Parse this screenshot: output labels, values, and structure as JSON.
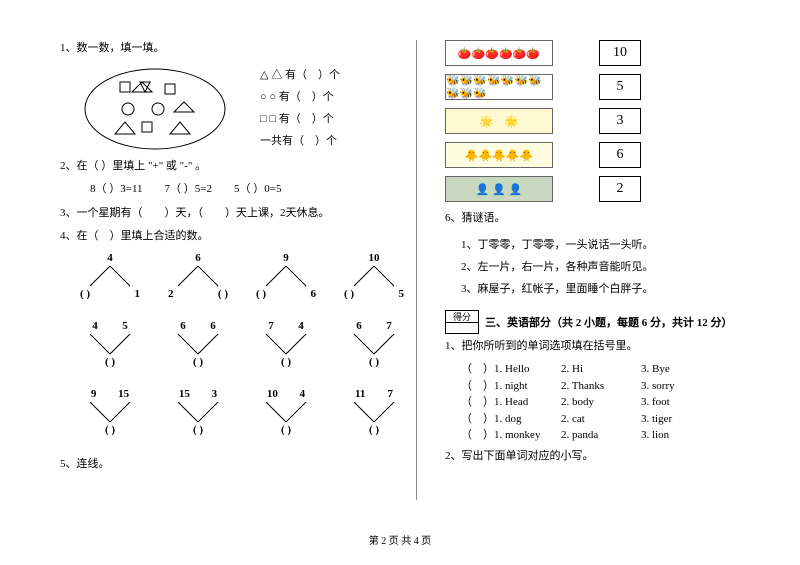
{
  "left": {
    "q1": {
      "title": "1、数一数，填一填。",
      "tri_label": "△ 有（　）个",
      "cir_label": "○ 有（　）个",
      "sq_label": "□ 有（　）个",
      "sum_label": "一共有（　）个"
    },
    "q2": {
      "title": "2、在（ ）里填上 \"+\" 或 \"-\" 。",
      "eqs": "8（ ）3=11　　7（ ）5=2　　5（ ）0=5"
    },
    "q3": "3、一个星期有（　　）天，（　　）天上课，2天休息。",
    "q4": {
      "title": "4、在（　）里填上合适的数。",
      "rows": [
        [
          {
            "top": [
              "4"
            ],
            "bot": [
              "( )",
              "1"
            ],
            "dir": "down"
          },
          {
            "top": [
              "6"
            ],
            "bot": [
              "2",
              "( )"
            ],
            "dir": "down"
          },
          {
            "top": [
              "9"
            ],
            "bot": [
              "( )",
              "6"
            ],
            "dir": "down"
          },
          {
            "top": [
              "10"
            ],
            "bot": [
              "( )",
              "5"
            ],
            "dir": "down"
          }
        ],
        [
          {
            "top": [
              "4",
              "5"
            ],
            "bot": [
              "( )"
            ],
            "dir": "up"
          },
          {
            "top": [
              "6",
              "6"
            ],
            "bot": [
              "( )"
            ],
            "dir": "up"
          },
          {
            "top": [
              "7",
              "4"
            ],
            "bot": [
              "( )"
            ],
            "dir": "up"
          },
          {
            "top": [
              "6",
              "7"
            ],
            "bot": [
              "( )"
            ],
            "dir": "up"
          }
        ],
        [
          {
            "top": [
              "9",
              "15"
            ],
            "bot": [
              "( )"
            ],
            "dir": "up"
          },
          {
            "top": [
              "15",
              "3"
            ],
            "bot": [
              "( )"
            ],
            "dir": "up"
          },
          {
            "top": [
              "10",
              "4"
            ],
            "bot": [
              "( )"
            ],
            "dir": "up"
          },
          {
            "top": [
              "11",
              "7"
            ],
            "bot": [
              "( )"
            ],
            "dir": "up"
          }
        ]
      ]
    },
    "q5": "5、连线。"
  },
  "right": {
    "match": {
      "rows": [
        {
          "pic": "🍅🍅🍅🍅🍅🍅",
          "num": "10",
          "bg": "#ffffff"
        },
        {
          "pic": "🐝🐝🐝🐝🐝🐝🐝🐝🐝🐝",
          "num": "5",
          "bg": "#ffffff"
        },
        {
          "pic": "🌟　🌟",
          "num": "3",
          "bg": "#fff8d0"
        },
        {
          "pic": "🐥🐥🐥🐥🐥",
          "num": "6",
          "bg": "#fffde0"
        },
        {
          "pic": "👤 👤 👤",
          "num": "2",
          "bg": "#c8d8c0"
        }
      ]
    },
    "q6": {
      "title": "6、猜谜语。",
      "r1": "1、丁零零，丁零零，一头说话一头听。",
      "r2": "2、左一片，右一片，各种声音能听见。",
      "r3": "3、麻屋子，红帐子，里面睡个白胖子。"
    },
    "score_label": "得分",
    "section3": "三、英语部分（共 2 小题，每题 6 分，共计 12 分）",
    "eng1": {
      "title": "1、把你所听到的单词选项填在括号里。",
      "rows": [
        [
          "（　）1. Hello",
          "2. Hi",
          "3. Bye"
        ],
        [
          "（　）1. night",
          "2. Thanks",
          "3. sorry"
        ],
        [
          "（　）1. Head",
          "2. body",
          "3. foot"
        ],
        [
          "（　）1. dog",
          "2. cat",
          "3. tiger"
        ],
        [
          "（　）1. monkey",
          "2. panda",
          "3. lion"
        ]
      ]
    },
    "eng2": "2、写出下面单词对应的小写。"
  },
  "footer": "第 2 页 共 4 页"
}
